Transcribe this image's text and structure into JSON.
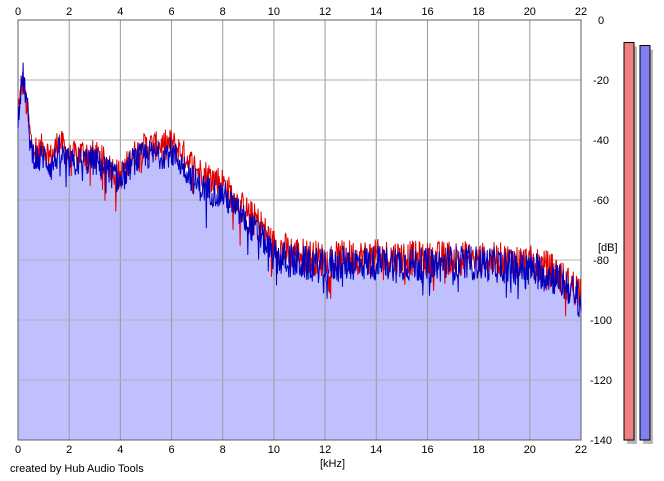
{
  "chart_data": {
    "type": "line",
    "xlabel": "[kHz]",
    "ylabel": "[dB]",
    "xlim": [
      0,
      22
    ],
    "ylim": [
      -140,
      0
    ],
    "x_ticks": [
      0,
      2,
      4,
      6,
      8,
      10,
      12,
      14,
      16,
      18,
      20,
      22
    ],
    "y_ticks": [
      0,
      -20,
      -40,
      -60,
      -80,
      -100,
      -120,
      -140
    ],
    "grid": true,
    "series": [
      {
        "color": "#e00000",
        "x": [
          0,
          0.1,
          0.2,
          0.35,
          0.5,
          0.8,
          1.0,
          1.3,
          1.6,
          2.0,
          2.5,
          3.0,
          3.5,
          4.0,
          4.5,
          5.0,
          5.5,
          6.0,
          6.5,
          7.0,
          7.5,
          8.0,
          8.5,
          9.0,
          9.5,
          10.0,
          10.5,
          11.0,
          12.0,
          13.0,
          14.0,
          15.0,
          16.0,
          17.0,
          18.0,
          19.0,
          20.0,
          20.5,
          21.0,
          21.5,
          22.0
        ],
        "values": [
          -30,
          -25,
          -20,
          -30,
          -40,
          -44,
          -42,
          -46,
          -40,
          -46,
          -44,
          -45,
          -48,
          -52,
          -45,
          -42,
          -42,
          -41,
          -45,
          -50,
          -52,
          -54,
          -60,
          -64,
          -68,
          -75,
          -77,
          -78,
          -80,
          -79,
          -79,
          -79,
          -80,
          -79,
          -80,
          -80,
          -81,
          -82,
          -84,
          -88,
          -90
        ]
      },
      {
        "color": "#0000c0",
        "x": [
          0,
          0.1,
          0.2,
          0.35,
          0.5,
          0.8,
          1.0,
          1.3,
          1.6,
          2.0,
          2.5,
          3.0,
          3.5,
          4.0,
          4.5,
          5.0,
          5.5,
          6.0,
          6.5,
          7.0,
          7.5,
          8.0,
          8.5,
          9.0,
          9.5,
          10.0,
          10.5,
          11.0,
          12.0,
          13.0,
          14.0,
          15.0,
          16.0,
          17.0,
          18.0,
          19.0,
          20.0,
          20.5,
          21.0,
          21.5,
          22.0
        ],
        "values": [
          -32,
          -24,
          -19,
          -28,
          -43,
          -47,
          -45,
          -49,
          -44,
          -48,
          -47,
          -47,
          -50,
          -54,
          -47,
          -45,
          -45,
          -44,
          -49,
          -55,
          -57,
          -58,
          -63,
          -68,
          -72,
          -79,
          -80,
          -81,
          -82,
          -81,
          -81,
          -81,
          -82,
          -81,
          -81,
          -82,
          -83,
          -84,
          -86,
          -89,
          -94
        ]
      }
    ],
    "meter_levels_db": [
      -7.5,
      -8.5
    ],
    "meter_colors": [
      "#f08080",
      "#8080f0"
    ],
    "fill_color": "#c0c0ff"
  },
  "footer": {
    "credit": "created by Hub Audio Tools"
  }
}
